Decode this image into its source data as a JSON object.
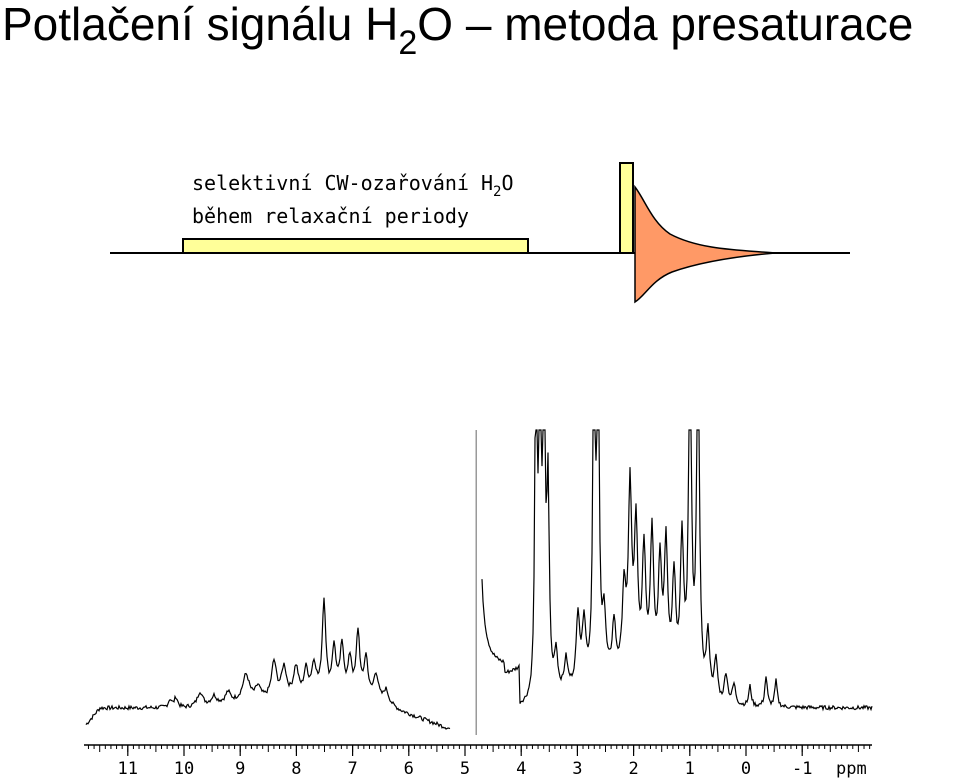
{
  "title": {
    "prefix": "Potlačení signálu H",
    "subscript": "2",
    "suffix": "O – metoda presaturace"
  },
  "pulse_sequence": {
    "caption_line1_prefix": "selektivní CW-ozařování H",
    "caption_line1_sub": "2",
    "caption_line1_suffix": "O",
    "caption_line2": "během relaxační periody",
    "colors": {
      "cw_block": "#ffff99",
      "hard_pulse": "#ffff99",
      "fid": "#ff9966"
    }
  },
  "spectrum": {
    "axis_unit": "ppm",
    "ticks": [
      "11",
      "10",
      "9",
      "8",
      "7",
      "6",
      "5",
      "4",
      "3",
      "2",
      "1",
      "0",
      "-1"
    ],
    "tick_values": [
      11,
      10,
      9,
      8,
      7,
      6,
      5,
      4,
      3,
      2,
      1,
      0,
      -1
    ],
    "axis_range_ppm": [
      11.8,
      -2.2
    ],
    "water_line_ppm": 4.8
  }
}
